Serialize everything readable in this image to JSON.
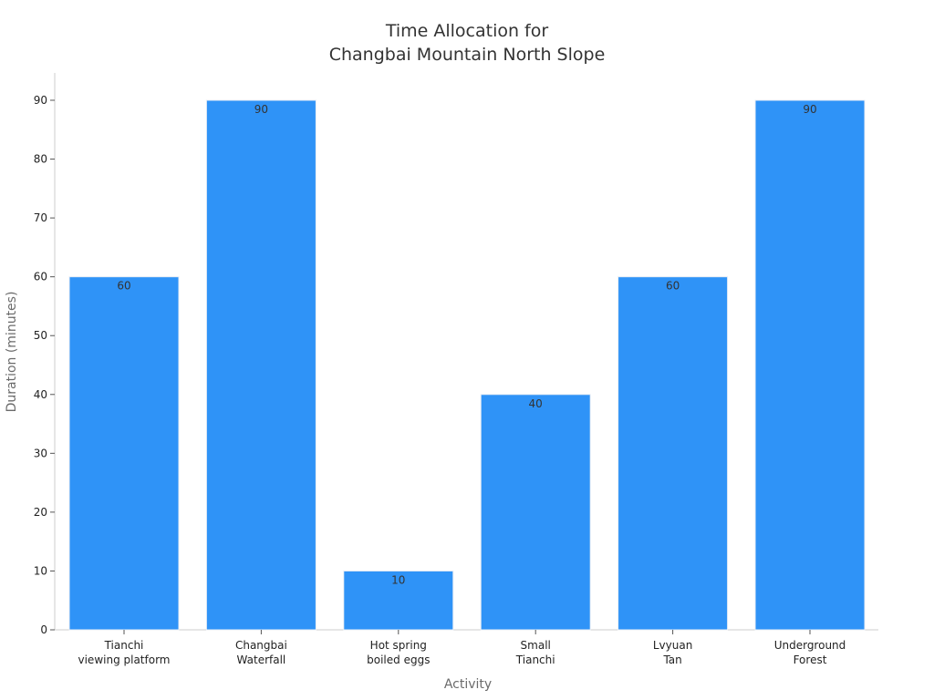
{
  "chart_data": {
    "type": "bar",
    "title": "Time Allocation for\nChangbai Mountain North Slope",
    "xlabel": "Activity",
    "ylabel": "Duration (minutes)",
    "categories": [
      "Tianchi\nviewing platform",
      "Changbai\nWaterfall",
      "Hot spring\nboiled eggs",
      "Small\nTianchi",
      "Lvyuan\nTan",
      "Underground\nForest"
    ],
    "values": [
      60,
      90,
      10,
      40,
      60,
      90
    ],
    "ylim": [
      0,
      95
    ],
    "yticks": [
      0,
      10,
      20,
      30,
      40,
      50,
      60,
      70,
      80,
      90
    ],
    "grid": false,
    "colors": {
      "bar": "#2f93f7",
      "bar_edge": "#e8eef5",
      "axis": "#cccccc"
    }
  }
}
